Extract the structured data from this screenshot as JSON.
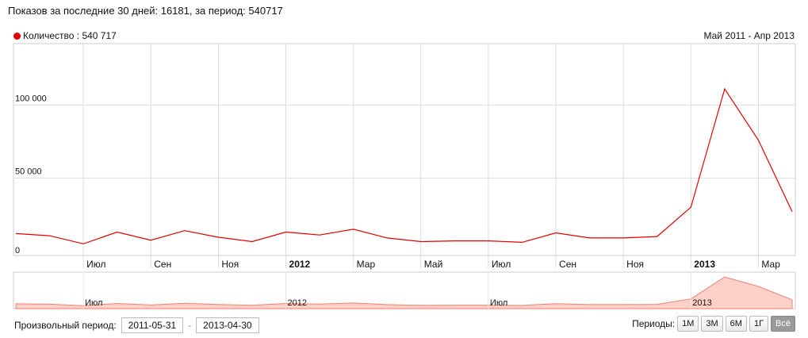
{
  "summary": "Показов за последние 30 дней: 16181, за период: 540717",
  "legend": {
    "label": "Количество : 540 717",
    "color": "#e50000"
  },
  "range_label": "Май 2011 - Апр 2013",
  "chart_data": {
    "type": "line",
    "x": [
      "2011-05",
      "2011-06",
      "2011-07",
      "2011-08",
      "2011-09",
      "2011-10",
      "2011-11",
      "2011-12",
      "2012-01",
      "2012-02",
      "2012-03",
      "2012-04",
      "2012-05",
      "2012-06",
      "2012-07",
      "2012-08",
      "2012-09",
      "2012-10",
      "2012-11",
      "2012-12",
      "2013-01",
      "2013-02",
      "2013-03",
      "2013-04"
    ],
    "series": [
      {
        "values": [
          12000,
          10500,
          5000,
          13000,
          7500,
          14000,
          9500,
          6500,
          13000,
          11000,
          15000,
          9000,
          6500,
          7000,
          7000,
          6000,
          12500,
          9000,
          9000,
          10000,
          30000,
          111000,
          76000,
          27000
        ]
      }
    ],
    "ylim": [
      -3000,
      142000
    ],
    "yticks": [
      {
        "value": 0,
        "label": "0"
      },
      {
        "value": 50000,
        "label": "50 000"
      },
      {
        "value": 100000,
        "label": "100 000"
      }
    ],
    "xticks": [
      {
        "x": "2011-07",
        "label": "Июл",
        "bold": false
      },
      {
        "x": "2011-09",
        "label": "Сен",
        "bold": false
      },
      {
        "x": "2011-11",
        "label": "Ноя",
        "bold": false
      },
      {
        "x": "2012-01",
        "label": "2012",
        "bold": true
      },
      {
        "x": "2012-03",
        "label": "Мар",
        "bold": false
      },
      {
        "x": "2012-05",
        "label": "Май",
        "bold": false
      },
      {
        "x": "2012-07",
        "label": "Июл",
        "bold": false
      },
      {
        "x": "2012-09",
        "label": "Сен",
        "bold": false
      },
      {
        "x": "2012-11",
        "label": "Ноя",
        "bold": false
      },
      {
        "x": "2013-01",
        "label": "2013",
        "bold": true
      },
      {
        "x": "2013-03",
        "label": "Мар",
        "bold": false
      }
    ],
    "navigator_labels": [
      {
        "x": "2011-07",
        "label": "Июл"
      },
      {
        "x": "2012-01",
        "label": "2012"
      },
      {
        "x": "2012-07",
        "label": "Июл"
      },
      {
        "x": "2013-01",
        "label": "2013"
      }
    ],
    "grid": true,
    "legend_position": "top-left"
  },
  "custom_period": {
    "label": "Произвольный период:",
    "from": "2011-05-31",
    "separator": "-",
    "to": "2013-04-30"
  },
  "periods": {
    "label": "Периоды:",
    "buttons": [
      "1М",
      "3М",
      "6М",
      "1Г",
      "Всё"
    ],
    "active": "Всё"
  }
}
